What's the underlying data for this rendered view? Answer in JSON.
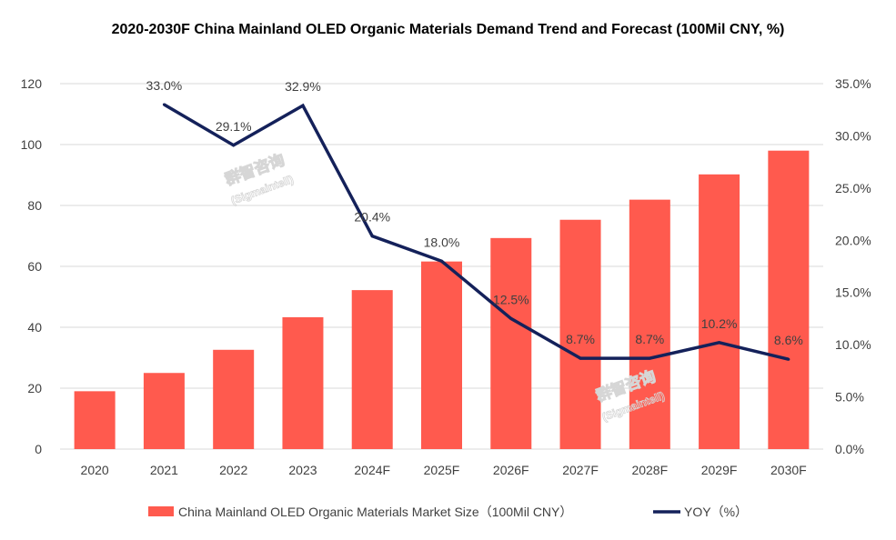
{
  "chart_data": {
    "type": "bar",
    "title": "2020-2030F China Mainland OLED Organic Materials Demand Trend and Forecast (100Mil CNY, %)",
    "categories": [
      "2020",
      "2021",
      "2022",
      "2023",
      "2024F",
      "2025F",
      "2026F",
      "2027F",
      "2028F",
      "2029F",
      "2030F"
    ],
    "series": [
      {
        "name": "China Mainland OLED Organic Materials Market Size（100Mil CNY）",
        "type": "bar",
        "axis": "left",
        "color": "#ff5a4e",
        "values": [
          19,
          25,
          32.6,
          43.3,
          52.2,
          61.6,
          69.3,
          75.3,
          81.9,
          90.2,
          98
        ]
      },
      {
        "name": "YOY（%）",
        "type": "line",
        "axis": "right",
        "color": "#14215a",
        "values": [
          null,
          33.0,
          29.1,
          32.9,
          20.4,
          18.0,
          12.5,
          8.7,
          8.7,
          10.2,
          8.6
        ],
        "labels": [
          "",
          "33.0%",
          "29.1%",
          "32.9%",
          "20.4%",
          "18.0%",
          "12.5%",
          "8.7%",
          "8.7%",
          "10.2%",
          "8.6%"
        ]
      }
    ],
    "y_left": {
      "min": 0,
      "max": 120,
      "ticks": [
        "0",
        "20",
        "40",
        "60",
        "80",
        "100",
        "120"
      ]
    },
    "y_right": {
      "min": 0,
      "max": 35,
      "ticks": [
        "0.0%",
        "5.0%",
        "10.0%",
        "15.0%",
        "20.0%",
        "25.0%",
        "30.0%",
        "35.0%"
      ]
    },
    "grid": true,
    "legend_position": "bottom"
  },
  "watermark": {
    "cn": "群智咨询",
    "en": "(Sigmaintell)"
  }
}
